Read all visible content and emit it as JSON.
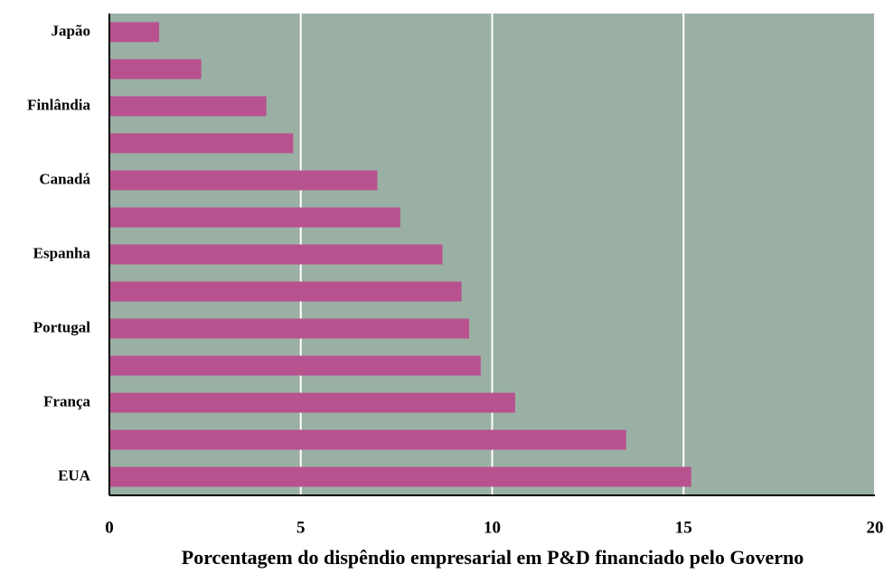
{
  "chart_data": {
    "type": "bar",
    "orientation": "horizontal",
    "x_label": "Porcentagem do dispêndio empresarial em P&D financiado pelo Governo",
    "categories": [
      "Japão",
      null,
      "Finlândia",
      null,
      "Canadá",
      null,
      "Espanha",
      null,
      "Portugal",
      null,
      "França",
      null,
      "EUA"
    ],
    "values": [
      1.3,
      2.4,
      4.1,
      4.8,
      7.0,
      7.6,
      8.7,
      9.2,
      9.4,
      9.7,
      10.6,
      13.5,
      15.2
    ],
    "color": "#b8528f",
    "background": "#9ab0a4",
    "xlim": [
      0,
      20
    ],
    "xticks": [
      0,
      5,
      10,
      15,
      20
    ],
    "grid": true
  }
}
